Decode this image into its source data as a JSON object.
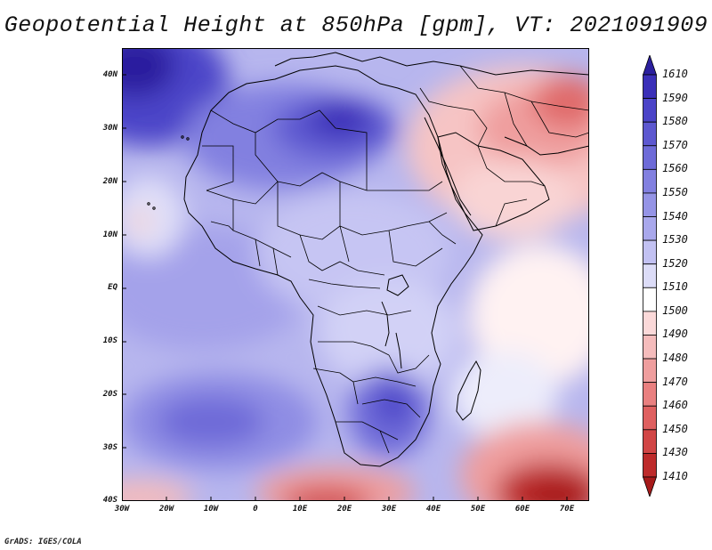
{
  "title": "Geopotential Height at 850hPa [gpm], VT: 2021091909",
  "credit": "GrADS: IGES/COLA",
  "y_axis_labels": [
    "40N",
    "30N",
    "20N",
    "10N",
    "EQ",
    "10S",
    "20S",
    "30S",
    "40S"
  ],
  "x_axis_labels": [
    "30W",
    "20W",
    "10W",
    "0",
    "10E",
    "20E",
    "30E",
    "40E",
    "50E",
    "60E",
    "70E"
  ],
  "colorbar": {
    "labels": [
      "1610",
      "1590",
      "1580",
      "1570",
      "1560",
      "1550",
      "1540",
      "1530",
      "1520",
      "1510",
      "1500",
      "1490",
      "1480",
      "1470",
      "1460",
      "1450",
      "1430",
      "1410"
    ],
    "colors": [
      "#2b1f9e",
      "#3a2fb8",
      "#4b44c8",
      "#5d58d0",
      "#6e6bd8",
      "#8280e0",
      "#9594e6",
      "#a9a8ec",
      "#c2c1f2",
      "#dcdcf7",
      "#ffffff",
      "#fbd9d9",
      "#f5bcbc",
      "#ef9e9e",
      "#e98080",
      "#df6060",
      "#d14646",
      "#bd2b2b",
      "#a61a1a"
    ]
  }
}
